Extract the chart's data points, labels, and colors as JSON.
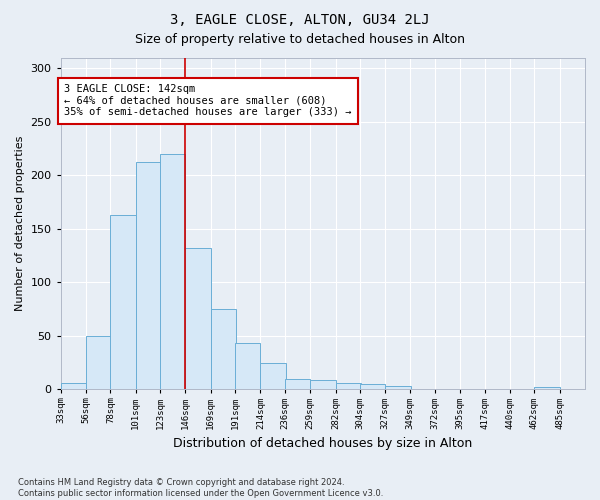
{
  "title": "3, EAGLE CLOSE, ALTON, GU34 2LJ",
  "subtitle": "Size of property relative to detached houses in Alton",
  "xlabel": "Distribution of detached houses by size in Alton",
  "ylabel": "Number of detached properties",
  "bar_left_edges": [
    33,
    56,
    78,
    101,
    123,
    146,
    169,
    191,
    214,
    236,
    259,
    282,
    304,
    327,
    349,
    372,
    395,
    417,
    440,
    462
  ],
  "bar_heights": [
    6,
    50,
    163,
    212,
    220,
    132,
    75,
    43,
    25,
    10,
    9,
    6,
    5,
    3,
    0,
    0,
    0,
    0,
    0,
    2
  ],
  "bin_width": 23,
  "bar_color": "#d6e8f7",
  "bar_edge_color": "#6aaed6",
  "property_line_x": 146,
  "annotation_text": "3 EAGLE CLOSE: 142sqm\n← 64% of detached houses are smaller (608)\n35% of semi-detached houses are larger (333) →",
  "annotation_box_color": "#ffffff",
  "annotation_box_edge": "#cc0000",
  "annotation_line_color": "#cc0000",
  "ylim": [
    0,
    310
  ],
  "yticks": [
    0,
    50,
    100,
    150,
    200,
    250,
    300
  ],
  "bg_color": "#e8eef5",
  "plot_bg_color": "#e8eef5",
  "footer_text": "Contains HM Land Registry data © Crown copyright and database right 2024.\nContains public sector information licensed under the Open Government Licence v3.0.",
  "tick_labels": [
    "33sqm",
    "56sqm",
    "78sqm",
    "101sqm",
    "123sqm",
    "146sqm",
    "169sqm",
    "191sqm",
    "214sqm",
    "236sqm",
    "259sqm",
    "282sqm",
    "304sqm",
    "327sqm",
    "349sqm",
    "372sqm",
    "395sqm",
    "417sqm",
    "440sqm",
    "462sqm",
    "485sqm"
  ],
  "title_fontsize": 10,
  "subtitle_fontsize": 9
}
